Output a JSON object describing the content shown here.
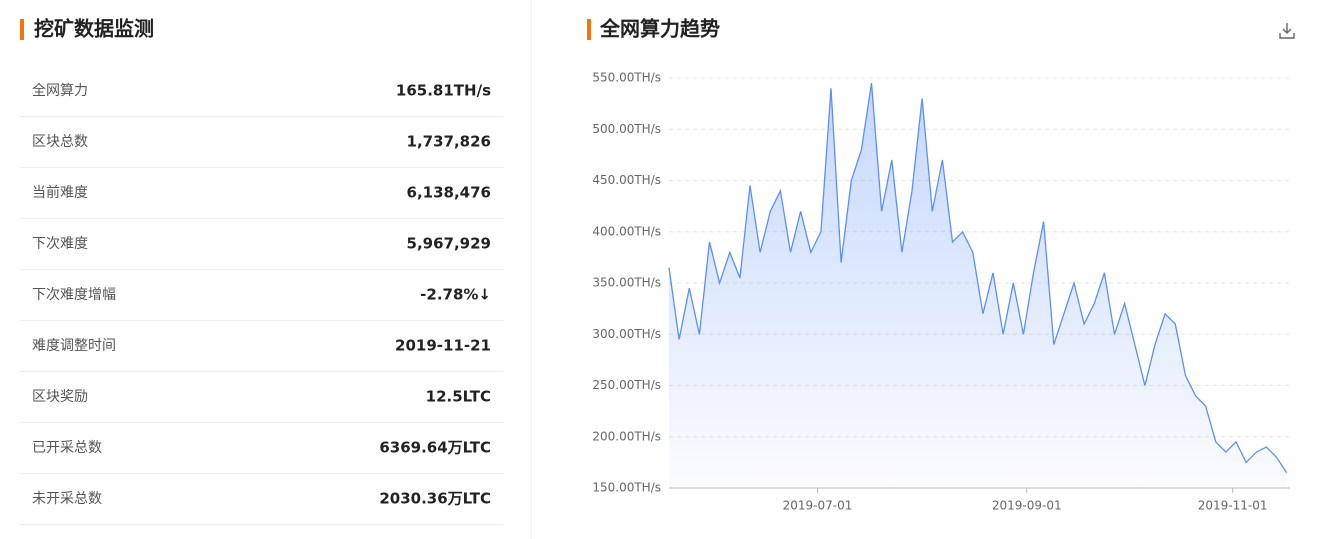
{
  "stats": {
    "title": "挖矿数据监测",
    "rows": [
      {
        "label": "全网算力",
        "value": "165.81TH/s"
      },
      {
        "label": "区块总数",
        "value": "1,737,826"
      },
      {
        "label": "当前难度",
        "value": "6,138,476"
      },
      {
        "label": "下次难度",
        "value": "5,967,929"
      },
      {
        "label": "下次难度增幅",
        "value": "-2.78%↓",
        "color": "#e4161b"
      },
      {
        "label": "难度调整时间",
        "value": "2019-11-21"
      },
      {
        "label": "区块奖励",
        "value": "12.5LTC"
      },
      {
        "label": "已开采总数",
        "value": "6369.64万LTC"
      },
      {
        "label": "未开采总数",
        "value": "2030.36万LTC"
      }
    ]
  },
  "chart_data": {
    "type": "line",
    "title": "全网算力趋势",
    "color": "#5b8ff9",
    "grid": true,
    "x": [
      "2019-05-18",
      "2019-05-21",
      "2019-05-24",
      "2019-05-27",
      "2019-05-30",
      "2019-06-02",
      "2019-06-05",
      "2019-06-08",
      "2019-06-11",
      "2019-06-14",
      "2019-06-17",
      "2019-06-20",
      "2019-06-23",
      "2019-06-26",
      "2019-06-29",
      "2019-07-02",
      "2019-07-05",
      "2019-07-08",
      "2019-07-11",
      "2019-07-14",
      "2019-07-17",
      "2019-07-20",
      "2019-07-23",
      "2019-07-26",
      "2019-07-29",
      "2019-08-01",
      "2019-08-04",
      "2019-08-07",
      "2019-08-10",
      "2019-08-13",
      "2019-08-16",
      "2019-08-19",
      "2019-08-22",
      "2019-08-25",
      "2019-08-28",
      "2019-08-31",
      "2019-09-03",
      "2019-09-06",
      "2019-09-09",
      "2019-09-12",
      "2019-09-15",
      "2019-09-18",
      "2019-09-21",
      "2019-09-24",
      "2019-09-27",
      "2019-09-30",
      "2019-10-03",
      "2019-10-06",
      "2019-10-09",
      "2019-10-12",
      "2019-10-15",
      "2019-10-18",
      "2019-10-21",
      "2019-10-24",
      "2019-10-27",
      "2019-10-30",
      "2019-11-02",
      "2019-11-05",
      "2019-11-08",
      "2019-11-11",
      "2019-11-14",
      "2019-11-17"
    ],
    "values": [
      365,
      295,
      345,
      300,
      390,
      350,
      380,
      355,
      445,
      380,
      420,
      440,
      380,
      420,
      380,
      400,
      540,
      370,
      450,
      480,
      545,
      420,
      470,
      380,
      440,
      530,
      420,
      470,
      390,
      400,
      380,
      320,
      360,
      300,
      350,
      300,
      360,
      410,
      290,
      320,
      350,
      310,
      330,
      360,
      300,
      330,
      290,
      250,
      290,
      320,
      310,
      260,
      240,
      230,
      195,
      185,
      195,
      175,
      185,
      190,
      180,
      165
    ],
    "xlim": [
      "2019-05-18",
      "2019-11-18"
    ],
    "xticks": [
      "2019-07-01",
      "2019-09-01",
      "2019-11-01"
    ],
    "ylim": [
      150,
      550
    ],
    "yticks": [
      {
        "value": 150,
        "label": "150.00TH/s"
      },
      {
        "value": 200,
        "label": "200.00TH/s"
      },
      {
        "value": 250,
        "label": "250.00TH/s"
      },
      {
        "value": 300,
        "label": "300.00TH/s"
      },
      {
        "value": 350,
        "label": "350.00TH/s"
      },
      {
        "value": 400,
        "label": "400.00TH/s"
      },
      {
        "value": 450,
        "label": "450.00TH/s"
      },
      {
        "value": 500,
        "label": "500.00TH/s"
      },
      {
        "value": 550,
        "label": "550.00TH/s"
      }
    ]
  }
}
